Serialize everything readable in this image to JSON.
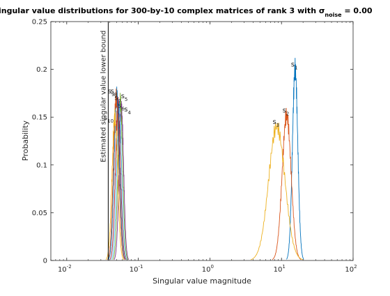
{
  "chart_data": {
    "type": "line",
    "title": "ingular value distributions for 300-by-10 complex matrices of rank 3 with σ",
    "title_subscript": "noise",
    "title_suffix": " = 0.00",
    "xlabel": "Singular value magnitude",
    "ylabel": "Probability",
    "xscale": "log",
    "xlim": [
      0.006,
      100
    ],
    "ylim": [
      0,
      0.25
    ],
    "x_ticks": [
      {
        "value": 0.01,
        "base": "10",
        "exp": "-2"
      },
      {
        "value": 0.1,
        "base": "10",
        "exp": "-1"
      },
      {
        "value": 1,
        "base": "10",
        "exp": "0"
      },
      {
        "value": 10,
        "base": "10",
        "exp": "1"
      },
      {
        "value": 100,
        "base": "10",
        "exp": "2"
      }
    ],
    "y_ticks": [
      {
        "value": 0,
        "label": "0"
      },
      {
        "value": 0.05,
        "label": "0.05"
      },
      {
        "value": 0.1,
        "label": "0.1"
      },
      {
        "value": 0.15,
        "label": "0.15"
      },
      {
        "value": 0.2,
        "label": "0.2"
      },
      {
        "value": 0.25,
        "label": "0.25"
      }
    ],
    "grid": false,
    "box": true,
    "lower_bound": {
      "x": 0.038,
      "label": "Estimated singular value lower bound",
      "color": "#000000"
    },
    "series": [
      {
        "name": "s",
        "index": "1",
        "color": "#0072BD",
        "center": 15.5,
        "width": 1.9,
        "peak": 0.2
      },
      {
        "name": "s",
        "index": "2",
        "color": "#D95319",
        "center": 11.8,
        "width": 2.5,
        "peak": 0.152
      },
      {
        "name": "s",
        "index": "3",
        "color": "#EDB120",
        "center": 8.6,
        "width": 3.6,
        "peak": 0.14
      },
      {
        "name": "s",
        "index": "4",
        "color": "#7E2F8E",
        "center": 0.058,
        "width": 0.006,
        "peak": 0.158
      },
      {
        "name": "s",
        "index": "5",
        "color": "#77AC30",
        "center": 0.056,
        "width": 0.006,
        "peak": 0.166
      },
      {
        "name": "s",
        "index": "6",
        "color": "#4DBEEE",
        "center": 0.054,
        "width": 0.006,
        "peak": 0.16
      },
      {
        "name": "s",
        "index": "7",
        "color": "#A2142F",
        "center": 0.052,
        "width": 0.006,
        "peak": 0.162
      },
      {
        "name": "s",
        "index": "8",
        "color": "#0072BD",
        "center": 0.05,
        "width": 0.006,
        "peak": 0.172
      },
      {
        "name": "s",
        "index": "9",
        "color": "#D95319",
        "center": 0.049,
        "width": 0.006,
        "peak": 0.17
      },
      {
        "name": "s",
        "index": "10",
        "color": "#EDB120",
        "center": 0.047,
        "width": 0.006,
        "peak": 0.15
      }
    ]
  }
}
